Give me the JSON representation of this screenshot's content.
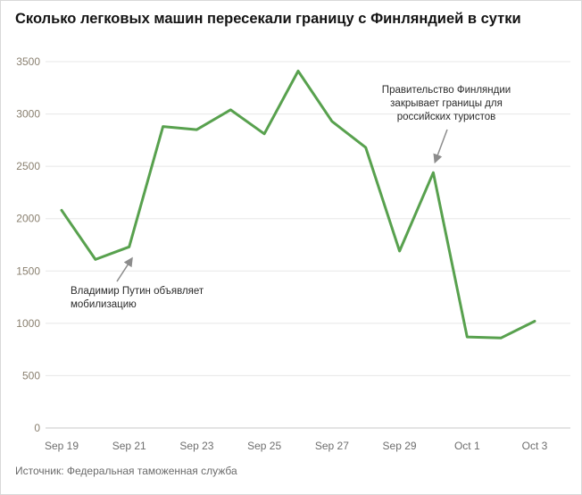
{
  "chart_data": {
    "type": "line",
    "title": "Сколько легковых машин пересекали границу с Финляндией в сутки",
    "source": "Источник: Федеральная таможенная служба",
    "days": [
      "Sep 19",
      "Sep 20",
      "Sep 21",
      "Sep 22",
      "Sep 23",
      "Sep 24",
      "Sep 25",
      "Sep 26",
      "Sep 27",
      "Sep 28",
      "Sep 29",
      "Sep 30",
      "Oct 1",
      "Oct 2",
      "Oct 3"
    ],
    "x_tick_every": 2,
    "values": [
      2080,
      1610,
      1730,
      2880,
      2850,
      3040,
      2810,
      3410,
      2930,
      2680,
      1690,
      2440,
      870,
      860,
      1020
    ],
    "y_ticks": [
      0,
      500,
      1000,
      1500,
      2000,
      2500,
      3000,
      3500
    ],
    "ylim": [
      0,
      3500
    ],
    "grid": true,
    "legend": "none",
    "line_color": "#58a14e",
    "arrow_color": "#8c8c8c",
    "annotations": [
      {
        "lines": [
          "Владимир Путин объявляет",
          "мобилизацию"
        ],
        "target_day": "Sep 21",
        "target_value": 1730
      },
      {
        "lines": [
          "Правительство Финляндии",
          "закрывает границы для",
          "российских туристов"
        ],
        "target_day": "Sep 30",
        "target_value": 2440
      }
    ]
  }
}
